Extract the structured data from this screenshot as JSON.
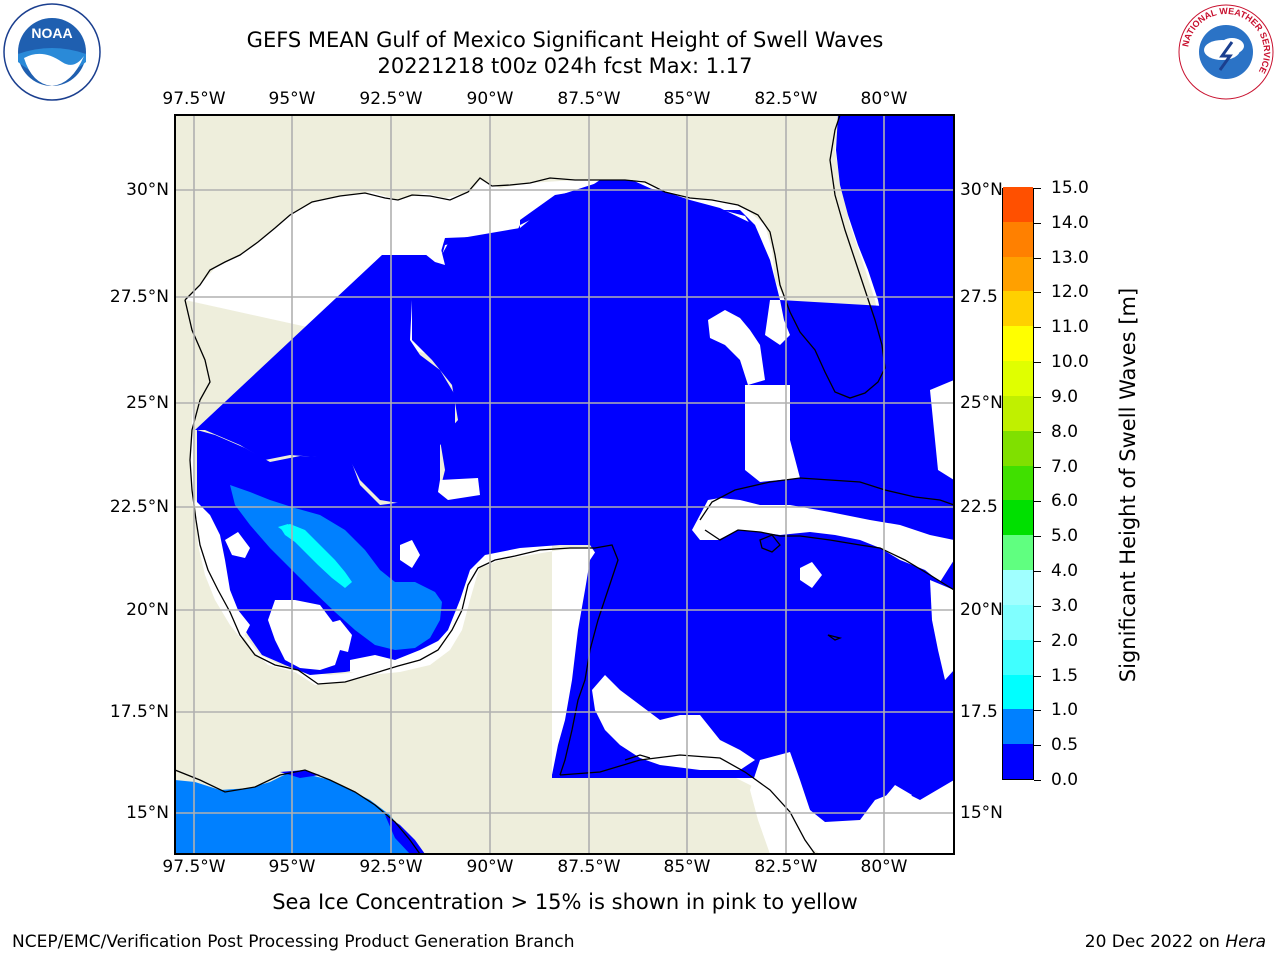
{
  "title_line1": "GEFS MEAN Gulf of Mexico Significant Height of Swell Waves",
  "title_line2": "20221218 t00z 024h fcst   Max: 1.17",
  "lon_labels": [
    "97.5°W",
    "95°W",
    "92.5°W",
    "90°W",
    "87.5°W",
    "85°W",
    "82.5°W",
    "80°W"
  ],
  "lat_labels": [
    "30°N",
    "27.5°N",
    "25°N",
    "22.5°N",
    "20°N",
    "17.5°N",
    "15°N"
  ],
  "lat_labels_right": [
    "30°N",
    "27.5",
    "25°N",
    "22.5",
    "20°N",
    "17.5",
    "15°N"
  ],
  "colorbar": {
    "label": "Significant Height of Swell Waves [m]",
    "ticks": [
      "15.0",
      "14.0",
      "13.0",
      "12.0",
      "11.0",
      "10.0",
      "9.0",
      "8.0",
      "7.0",
      "6.0",
      "5.0",
      "4.0",
      "3.0",
      "2.0",
      "1.5",
      "1.0",
      "0.5",
      "0.0"
    ],
    "colors_bottom_to_top": [
      "#0000ff",
      "#0080ff",
      "#00ffff",
      "#40ffff",
      "#80ffff",
      "#a0ffff",
      "#60ff80",
      "#00e000",
      "#40e000",
      "#80e000",
      "#c0f000",
      "#e0ff00",
      "#ffff00",
      "#ffd000",
      "#ffa000",
      "#ff8000",
      "#ff5000",
      "#ff2000",
      "#ff0000"
    ]
  },
  "colors": {
    "land": "#eeeedc",
    "ocean_low": "#0000ff",
    "ocean_mid": "#0080ff",
    "ocean_high": "#00ffff",
    "grid": "#b0b0b0"
  },
  "logos": {
    "noaa": "NOAA",
    "noaa_ring": "NATIONAL OCEANIC AND ATMOSPHERIC ADMINISTRATION · U.S. DEPARTMENT OF COMMERCE",
    "nws_ring": "NATIONAL WEATHER SERVICE"
  },
  "subcaption": "Sea Ice Concentration > 15% is shown in pink to yellow",
  "footer_left": "NCEP/EMC/Verification Post Processing Product Generation Branch",
  "footer_right_date": "20 Dec 2022 on ",
  "footer_right_host": "Hera"
}
